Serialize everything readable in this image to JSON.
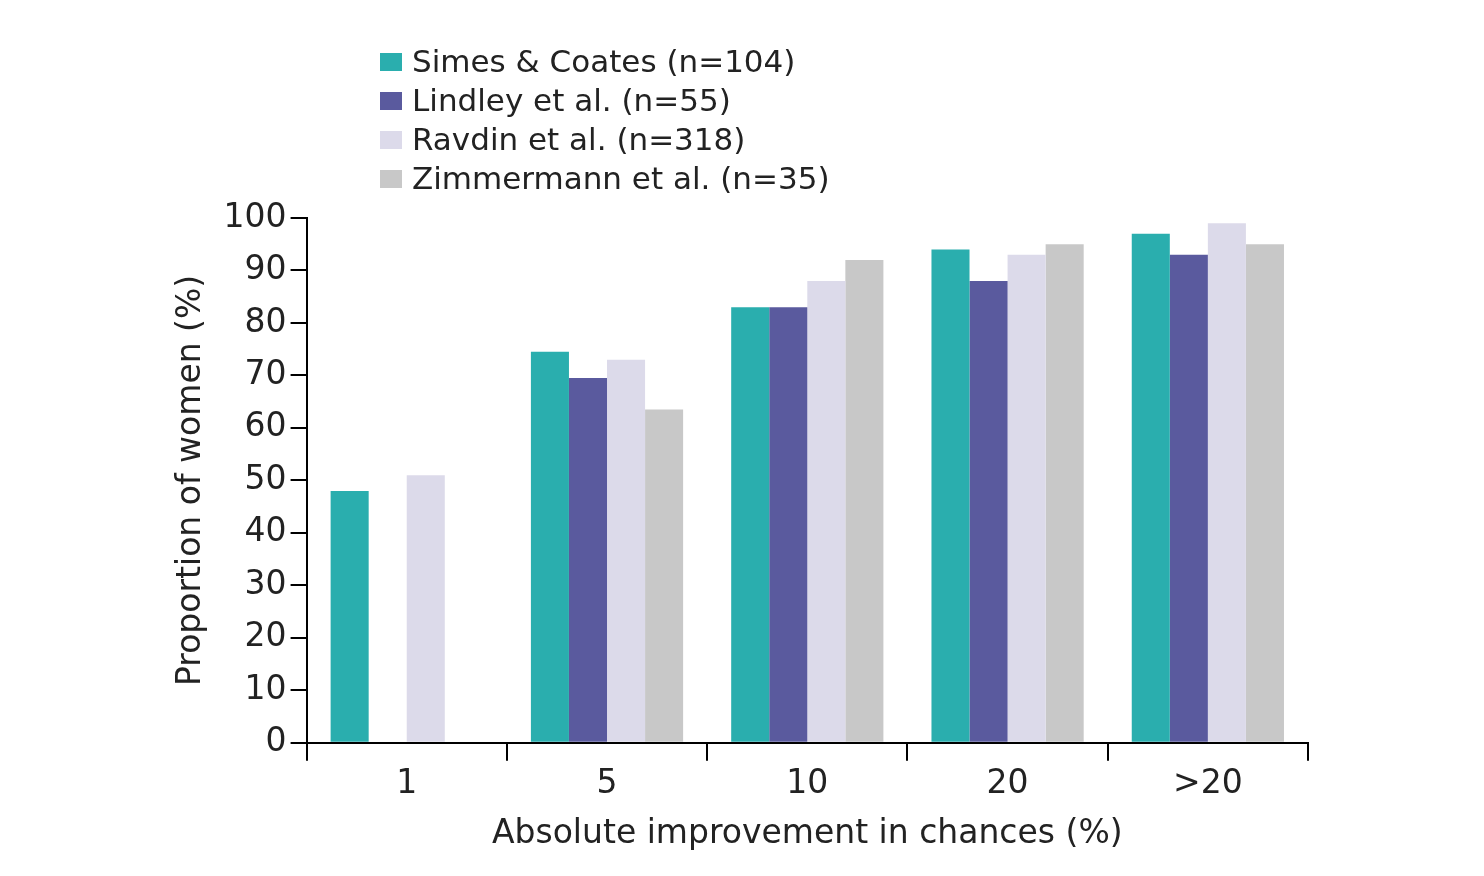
{
  "chart_data": {
    "type": "bar",
    "xlabel": "Absolute improvement in chances (%)",
    "ylabel": "Proportion of women (%)",
    "categories": [
      "1",
      "5",
      "10",
      "20",
      ">20"
    ],
    "series": [
      {
        "name": "Simes & Coates (n=104)",
        "color": "#2aaeae",
        "values": [
          48,
          74.5,
          83,
          94,
          97
        ]
      },
      {
        "name": "Lindley et al. (n=55)",
        "color": "#5a5a9e",
        "values": [
          null,
          69.5,
          83,
          88,
          93
        ]
      },
      {
        "name": "Ravdin et al. (n=318)",
        "color": "#dcdaea",
        "values": [
          51,
          73,
          88,
          93,
          99
        ]
      },
      {
        "name": "Zimmermann et al. (n=35)",
        "color": "#c8c8c8",
        "values": [
          null,
          63.5,
          92,
          95,
          95
        ]
      }
    ],
    "ylim": [
      0,
      100
    ],
    "yticks": [
      0,
      10,
      20,
      30,
      40,
      50,
      60,
      70,
      80,
      90,
      100
    ],
    "grid": false,
    "legend": "top left"
  }
}
